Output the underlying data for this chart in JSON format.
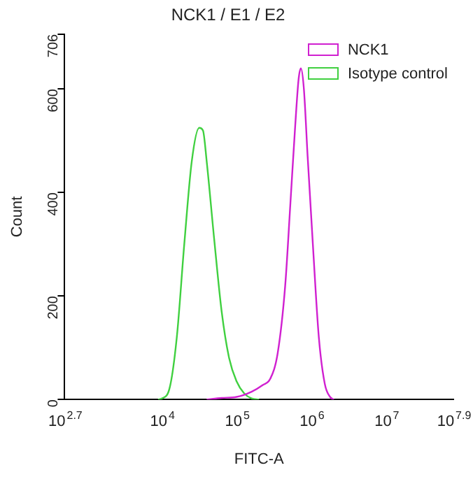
{
  "chart_data": {
    "type": "line",
    "title": "NCK1 / E1 / E2",
    "xlabel": "FITC-A",
    "ylabel": "Count",
    "log": "x",
    "xlim": [
      501.19,
      79432823
    ],
    "xticks": [
      {
        "value": 501.19,
        "label": "10$^{2.7}$"
      },
      {
        "value": 10000,
        "label": "10$^{4}$"
      },
      {
        "value": 100000,
        "label": "10$^{5}$"
      },
      {
        "value": 1000000,
        "label": "10$^{6}$"
      },
      {
        "value": 10000000,
        "label": "10$^{7}$"
      },
      {
        "value": 79432823,
        "label": "10$^{7.9}$"
      }
    ],
    "ylim": [
      0,
      706
    ],
    "yticks": [
      0,
      200,
      400,
      600,
      706
    ],
    "grid": false,
    "legend": "top right",
    "marker": "none",
    "line_style": "solid",
    "series": [
      {
        "name": "NCK1",
        "color": "#d020d0",
        "x": [
          39811,
          63096,
          100000,
          158489,
          223872,
          281838,
          354813,
          446684,
          524807,
          602560,
          676083,
          724436,
          794328,
          891251,
          1047129,
          1258925,
          1513561,
          1778279,
          1995262
        ],
        "values": [
          0,
          3,
          5,
          15,
          28,
          40,
          90,
          220,
          380,
          520,
          620,
          640,
          600,
          470,
          300,
          120,
          30,
          5,
          0
        ]
      },
      {
        "name": "Isotype control",
        "color": "#40d040",
        "x": [
          8913,
          10000,
          12589,
          15849,
          19953,
          25119,
          31623,
          35481,
          39811,
          50119,
          63096,
          79433,
          100000,
          125893,
          158489,
          199526
        ],
        "values": [
          0,
          2,
          20,
          120,
          300,
          460,
          525,
          520,
          460,
          310,
          170,
          80,
          35,
          12,
          2,
          0
        ]
      }
    ]
  }
}
